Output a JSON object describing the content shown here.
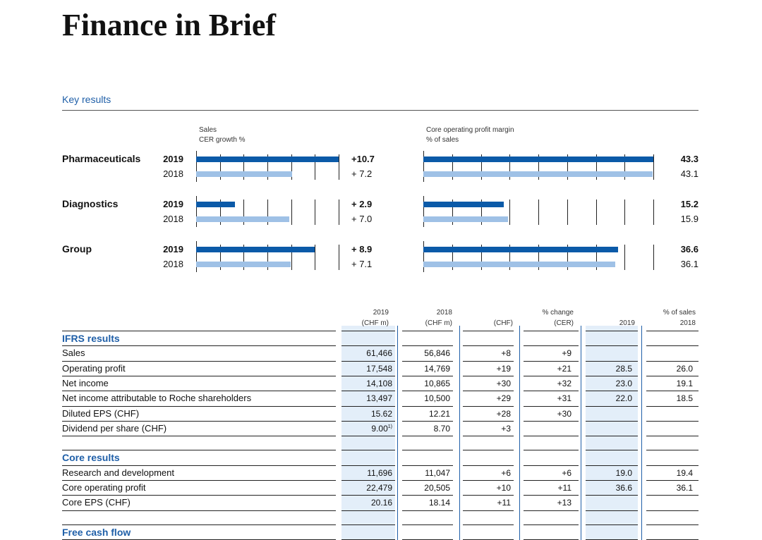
{
  "page": {
    "title": "Finance in Brief",
    "subtitle": "Key results"
  },
  "charts": {
    "sales_header": [
      "Sales",
      "CER growth %"
    ],
    "margin_header": [
      "Core operating profit margin",
      "% of sales"
    ]
  },
  "chart_data": [
    {
      "type": "bar",
      "title": "Sales",
      "ylabel": "CER growth %",
      "categories": [
        "Pharmaceuticals",
        "Diagnostics",
        "Group"
      ],
      "series": [
        {
          "name": "2019",
          "values": [
            10.7,
            2.9,
            8.9
          ],
          "labels": [
            "+10.7",
            "+ 2.9",
            "+ 8.9"
          ]
        },
        {
          "name": "2018",
          "values": [
            7.2,
            7.0,
            7.1
          ],
          "labels": [
            "+ 7.2",
            "+ 7.0",
            "+ 7.1"
          ]
        }
      ],
      "xlim": [
        0,
        10.7
      ],
      "grid": true
    },
    {
      "type": "bar",
      "title": "Core operating profit margin",
      "ylabel": "% of sales",
      "categories": [
        "Pharmaceuticals",
        "Diagnostics",
        "Group"
      ],
      "series": [
        {
          "name": "2019",
          "values": [
            43.3,
            15.2,
            36.6
          ],
          "labels": [
            "43.3",
            "15.2",
            "36.6"
          ]
        },
        {
          "name": "2018",
          "values": [
            43.1,
            15.9,
            36.1
          ],
          "labels": [
            "43.1",
            "15.9",
            "36.1"
          ]
        }
      ],
      "xlim": [
        0,
        43.3
      ],
      "grid": true
    }
  ],
  "colors": {
    "current": "#0b5aa8",
    "prior": "#9fc1e6",
    "accent": "#1f5fa8",
    "shade": "#e3eef9"
  },
  "table": {
    "headers": {
      "y2019": [
        "2019",
        "(CHF m)"
      ],
      "y2018": [
        "2018",
        "(CHF m)"
      ],
      "chf": "(CHF)",
      "cer": [
        "% change",
        "(CER)"
      ],
      "s2019": "2019",
      "s2018": [
        "% of sales",
        "2018"
      ]
    },
    "sections": [
      {
        "title": "IFRS results",
        "rows": [
          {
            "label": "Sales",
            "v2019": "61,466",
            "v2018": "56,846",
            "chf": "+8",
            "cer": "+9",
            "s2019": "",
            "s2018": ""
          },
          {
            "label": "Operating profit",
            "v2019": "17,548",
            "v2018": "14,769",
            "chf": "+19",
            "cer": "+21",
            "s2019": "28.5",
            "s2018": "26.0"
          },
          {
            "label": "Net income",
            "v2019": "14,108",
            "v2018": "10,865",
            "chf": "+30",
            "cer": "+32",
            "s2019": "23.0",
            "s2018": "19.1"
          },
          {
            "label": "Net income attributable to Roche shareholders",
            "v2019": "13,497",
            "v2018": "10,500",
            "chf": "+29",
            "cer": "+31",
            "s2019": "22.0",
            "s2018": "18.5"
          },
          {
            "label": "Diluted EPS (CHF)",
            "v2019": "15.62",
            "v2018": "12.21",
            "chf": "+28",
            "cer": "+30",
            "s2019": "",
            "s2018": ""
          },
          {
            "label": "Dividend per share (CHF)",
            "v2019": "9.00",
            "v2018": "8.70",
            "chf": "+3",
            "cer": "",
            "s2019": "",
            "s2018": "",
            "note": "1)"
          }
        ]
      },
      {
        "title": "Core results",
        "rows": [
          {
            "label": "Research and development",
            "v2019": "11,696",
            "v2018": "11,047",
            "chf": "+6",
            "cer": "+6",
            "s2019": "19.0",
            "s2018": "19.4"
          },
          {
            "label": "Core operating profit",
            "v2019": "22,479",
            "v2018": "20,505",
            "chf": "+10",
            "cer": "+11",
            "s2019": "36.6",
            "s2018": "36.1"
          },
          {
            "label": "Core EPS (CHF)",
            "v2019": "20.16",
            "v2018": "18.14",
            "chf": "+11",
            "cer": "+13",
            "s2019": "",
            "s2018": ""
          }
        ]
      },
      {
        "title": "Free cash flow",
        "rows": []
      }
    ]
  }
}
